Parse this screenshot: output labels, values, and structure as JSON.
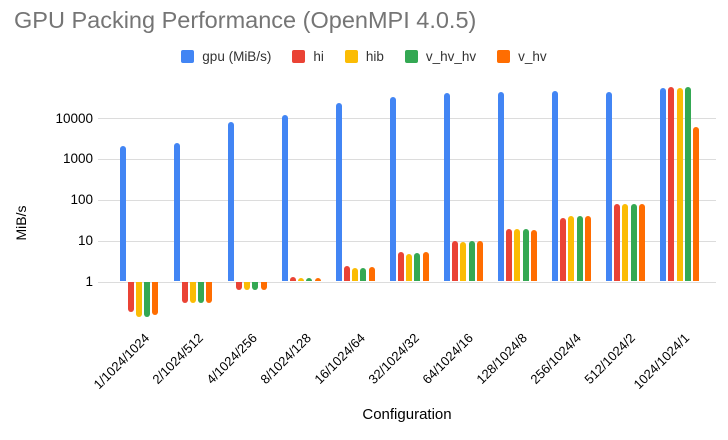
{
  "colors": {
    "background": "#ffffff",
    "title_text": "#757575",
    "axis_text": "#000000",
    "gridline": "#dcdcdc"
  },
  "chart_data": {
    "type": "bar",
    "title": "GPU Packing Performance (OpenMPI 4.0.5)",
    "xlabel": "Configuration",
    "ylabel": "MiB/s",
    "y_scale": "log",
    "y_ticks": [
      1,
      10,
      100,
      1000,
      10000
    ],
    "ylim": [
      0.1,
      100000
    ],
    "grid": true,
    "legend_position": "top",
    "categories": [
      "1/1024/1024",
      "2/1024/512",
      "4/1024/256",
      "8/1024/128",
      "16/1024/64",
      "32/1024/32",
      "64/1024/16",
      "128/1024/8",
      "256/1024/4",
      "512/1024/2",
      "1024/1024/1"
    ],
    "series": [
      {
        "name": "gpu (MiB/s)",
        "color": "#4285F4",
        "values": [
          2100,
          2500,
          8200,
          12000,
          23000,
          32000,
          41000,
          44000,
          47000,
          43000,
          55000
        ]
      },
      {
        "name": "hi",
        "color": "#EA4335",
        "values": [
          0.18,
          0.31,
          0.65,
          1.3,
          2.4,
          5.2,
          10,
          19,
          36,
          77,
          57000
        ]
      },
      {
        "name": "hib",
        "color": "#FBBC04",
        "values": [
          0.14,
          0.3,
          0.62,
          1.25,
          2.15,
          4.7,
          9.5,
          19,
          41,
          79,
          55000
        ]
      },
      {
        "name": "v_hv_hv",
        "color": "#34A853",
        "values": [
          0.14,
          0.3,
          0.62,
          1.25,
          2.15,
          5.0,
          10,
          19,
          41,
          77,
          57000
        ]
      },
      {
        "name": "v_hv",
        "color": "#FF6D01",
        "values": [
          0.16,
          0.31,
          0.65,
          1.25,
          2.25,
          5.2,
          10,
          18.5,
          41,
          79,
          6200
        ]
      }
    ]
  }
}
